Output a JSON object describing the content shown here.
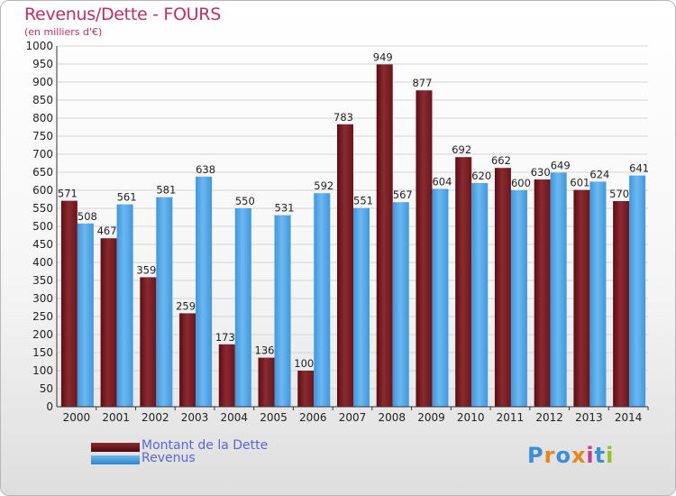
{
  "title": "Revenus/Dette - FOURS",
  "subtitle": "(en milliers d'€)",
  "logo": {
    "text": "Proxiti",
    "colors": [
      "#3a8fd8",
      "#e8851c",
      "#3a8fd8",
      "#e8851c",
      "#c93b8e",
      "#3a8fd8",
      "#8fc41f"
    ]
  },
  "chart_data": {
    "type": "bar",
    "title": "Revenus/Dette - FOURS",
    "subtitle": "(en milliers d'€)",
    "categories": [
      "2000",
      "2001",
      "2002",
      "2003",
      "2004",
      "2005",
      "2006",
      "2007",
      "2008",
      "2009",
      "2010",
      "2011",
      "2012",
      "2013",
      "2014"
    ],
    "series": [
      {
        "name": "Montant de la Dette",
        "color": "#7a1a22",
        "values": [
          571,
          467,
          359,
          259,
          173,
          136,
          100,
          783,
          949,
          877,
          692,
          662,
          630,
          601,
          570
        ]
      },
      {
        "name": "Revenus",
        "color": "#4aa3e8",
        "values": [
          508,
          561,
          581,
          638,
          550,
          531,
          592,
          551,
          567,
          604,
          620,
          600,
          649,
          624,
          641
        ]
      }
    ],
    "ylim": [
      0,
      1000
    ],
    "yticks": [
      0,
      50,
      100,
      150,
      200,
      250,
      300,
      350,
      400,
      450,
      500,
      550,
      600,
      650,
      700,
      750,
      800,
      850,
      900,
      950,
      1000
    ],
    "grid": true,
    "legend": "bottom-left"
  }
}
